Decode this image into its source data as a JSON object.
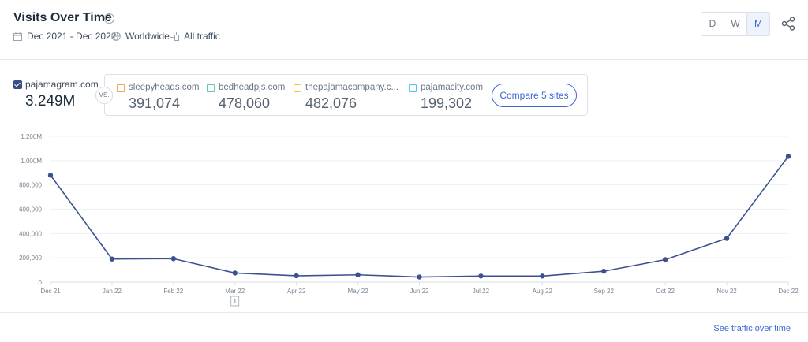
{
  "header": {
    "title": "Visits Over Time",
    "info_icon": "i",
    "date_range": "Dec 2021 - Dec 2022",
    "region": "Worldwide",
    "traffic": "All traffic",
    "granularity": [
      "D",
      "W",
      "M"
    ],
    "selected_granularity": "M"
  },
  "main_site": {
    "name": "pajamagram.com",
    "value": "3.249M",
    "color": "#3a4d82"
  },
  "vs_label": "VS.",
  "competitors": [
    {
      "name": "sleepyheads.com",
      "value": "391,074",
      "color": "#f0a55b"
    },
    {
      "name": "bedheadpjs.com",
      "value": "478,060",
      "color": "#5cc9b8"
    },
    {
      "name": "thepajamacompany.c...",
      "value": "482,076",
      "color": "#f2c94c"
    },
    {
      "name": "pajamacity.com",
      "value": "199,302",
      "color": "#56c2f0"
    }
  ],
  "compare_button": "Compare 5 sites",
  "chart_data": {
    "type": "line",
    "categories": [
      "Dec 21",
      "Jan 22",
      "Feb 22",
      "Mar 22",
      "Apr 22",
      "May 22",
      "Jun 22",
      "Jul 22",
      "Aug 22",
      "Sep 22",
      "Oct 22",
      "Nov 22",
      "Dec 22"
    ],
    "series": [
      {
        "name": "pajamagram.com",
        "color": "#3d5191",
        "values": [
          880000,
          190000,
          193000,
          75000,
          52000,
          60000,
          42000,
          50000,
          50000,
          90000,
          185000,
          360000,
          1035000
        ]
      }
    ],
    "yticks": [
      0,
      200000,
      400000,
      600000,
      800000,
      1000000,
      1200000
    ],
    "ytick_labels": [
      "0",
      "200,000",
      "400,000",
      "600,000",
      "800,000",
      "1.000M",
      "1.200M"
    ],
    "ylim": [
      0,
      1200000
    ],
    "grid": true,
    "annotation": {
      "category": "Mar 22",
      "label": "1"
    }
  },
  "footer": {
    "link": "See traffic over time"
  }
}
